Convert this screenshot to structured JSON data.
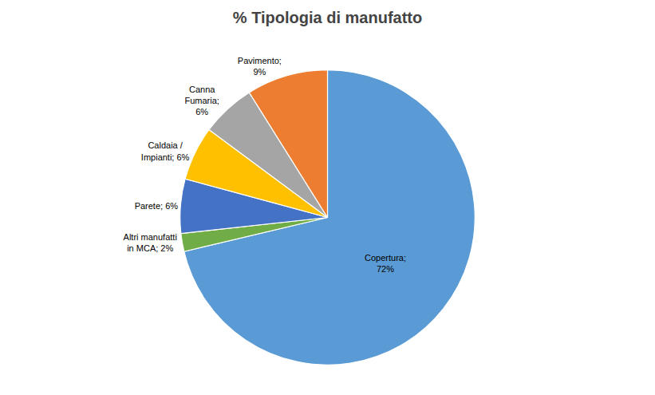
{
  "chart_data": {
    "type": "pie",
    "title": "% Tipologia di manufatto",
    "categories": [
      "Copertura;\n72%",
      "Altri manufatti\nin MCA; 2%",
      "Parete; 6%",
      "Caldaia /\nImpianti; 6%",
      "Canna\nFumaria;\n6%",
      "Pavimento;\n9%"
    ],
    "values": [
      72,
      2,
      6,
      6,
      6,
      9
    ],
    "colors": [
      "#5B9BD5",
      "#70AD47",
      "#4472C4",
      "#FFC000",
      "#A5A5A5",
      "#ED7D31"
    ]
  }
}
